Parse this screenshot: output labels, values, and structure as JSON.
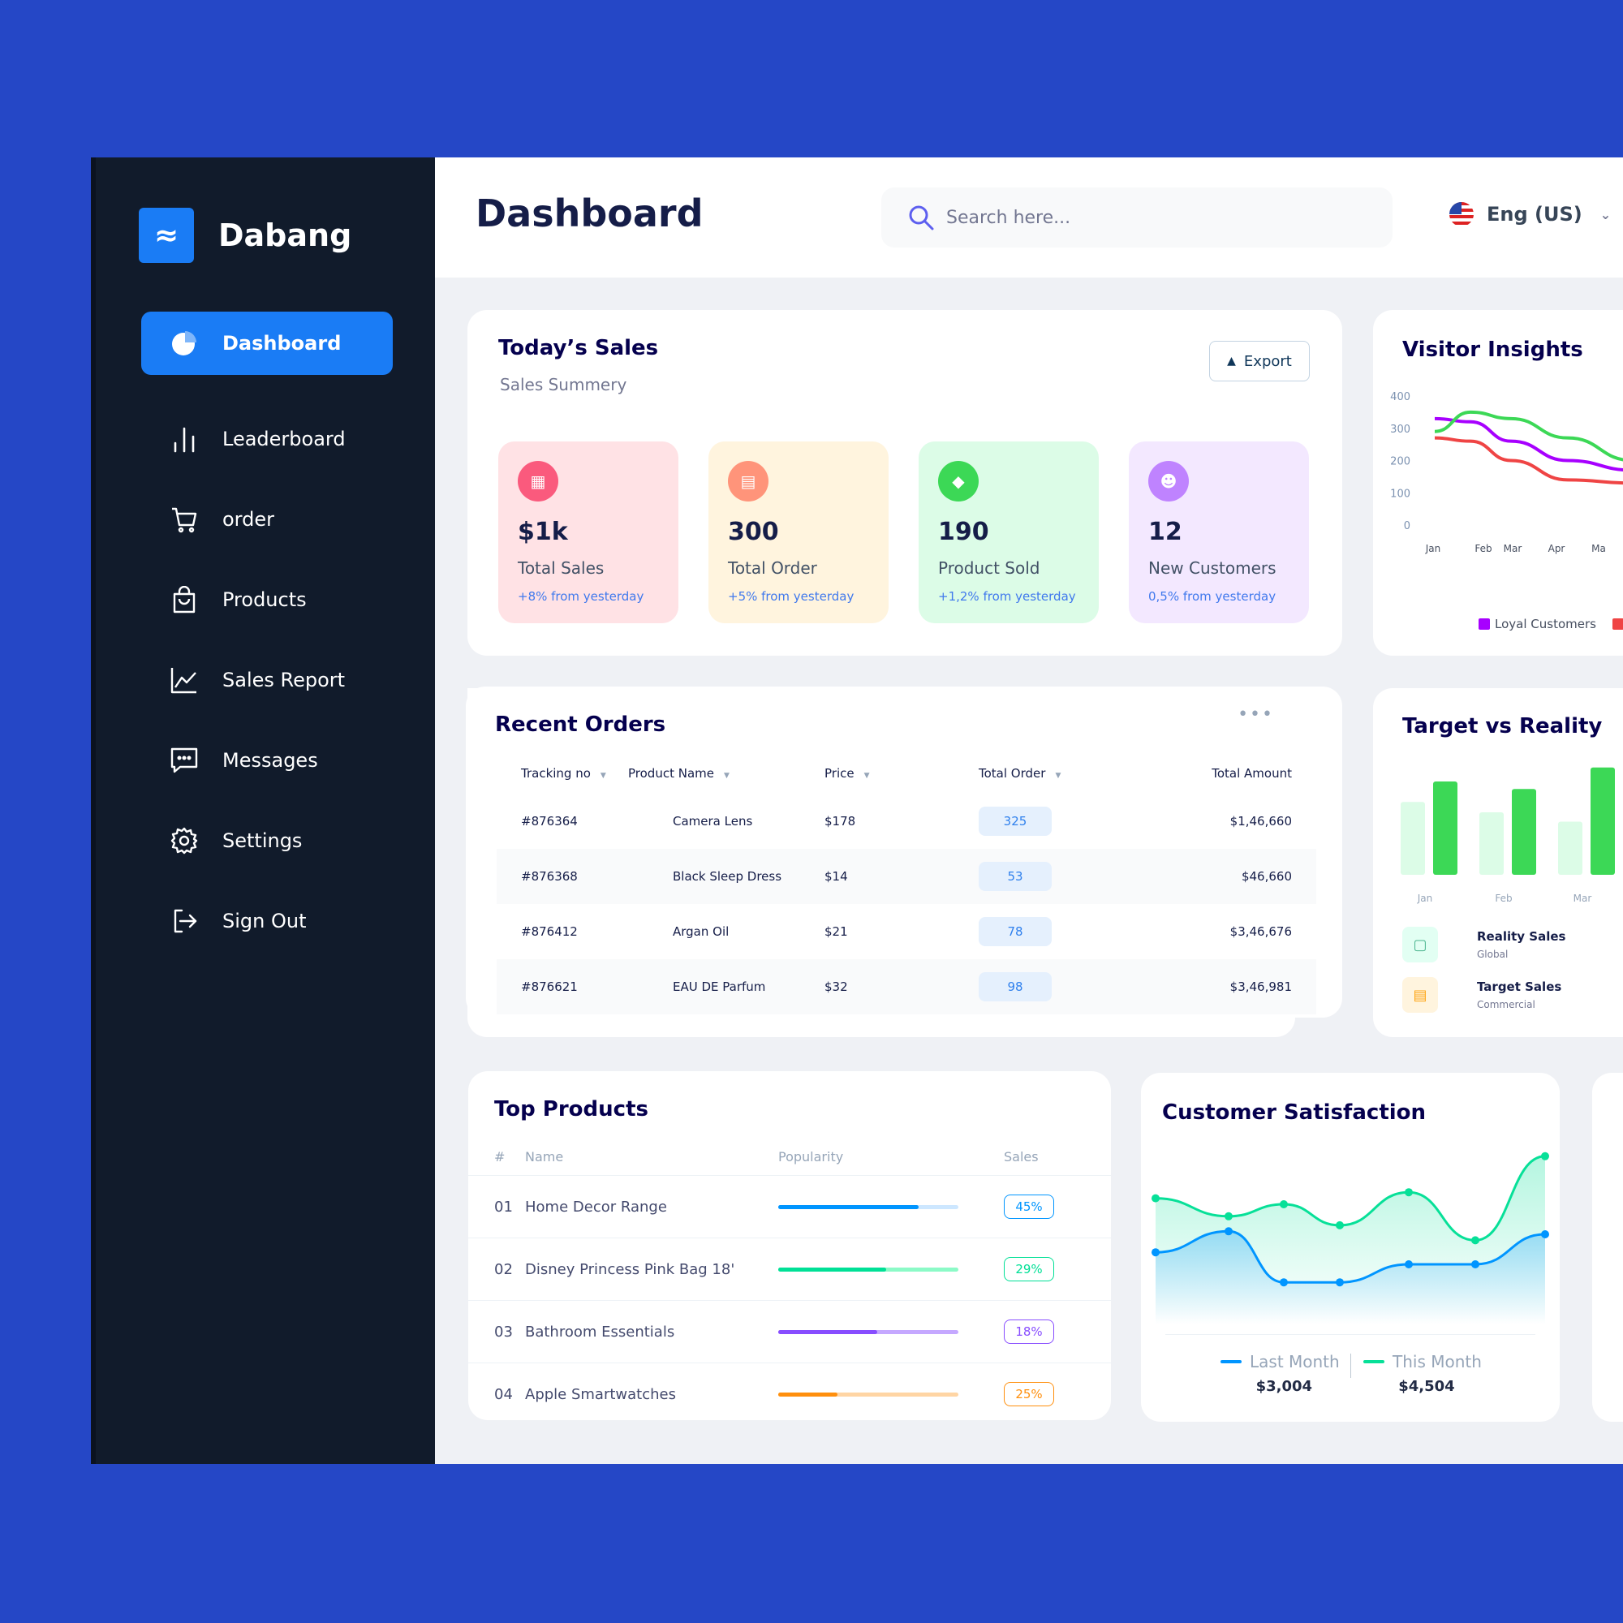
{
  "brand": {
    "logo_glyph": "≈",
    "name": "Dabang"
  },
  "nav": {
    "items": [
      {
        "label": "Dashboard",
        "icon": "pie-chart-icon",
        "active": true
      },
      {
        "label": "Leaderboard",
        "icon": "bar-chart-icon"
      },
      {
        "label": "order",
        "icon": "cart-icon"
      },
      {
        "label": "Products",
        "icon": "shopping-bag-icon"
      },
      {
        "label": "Sales Report",
        "icon": "line-chart-icon"
      },
      {
        "label": "Messages",
        "icon": "message-icon"
      },
      {
        "label": "Settings",
        "icon": "gear-icon"
      },
      {
        "label": "Sign Out",
        "icon": "sign-out-icon"
      }
    ]
  },
  "header": {
    "title": "Dashboard",
    "search_placeholder": "Search here...",
    "language": "Eng (US)"
  },
  "todays_sales": {
    "title": "Today’s Sales",
    "subtitle": "Sales Summery",
    "export_label": "Export",
    "cards": [
      {
        "value": "$1k",
        "label": "Total Sales",
        "change": "+8% from yesterday",
        "bg": "#ffe2e5",
        "icon_bg": "#fa5a7d",
        "icon": "chart-icon"
      },
      {
        "value": "300",
        "label": "Total Order",
        "change": "+5% from yesterday",
        "bg": "#fff4de",
        "icon_bg": "#ff947a",
        "icon": "document-icon"
      },
      {
        "value": "190",
        "label": "Product Sold",
        "change": "+1,2% from yesterday",
        "bg": "#dcfce7",
        "icon_bg": "#3cd856",
        "icon": "tag-icon"
      },
      {
        "value": "12",
        "label": "New Customers",
        "change": "0,5% from yesterday",
        "bg": "#f3e8ff",
        "icon_bg": "#bf83ff",
        "icon": "user-add-icon"
      }
    ]
  },
  "visitor_insights": {
    "title": "Visitor Insights",
    "legend": [
      "Loyal Customers"
    ]
  },
  "recent_orders": {
    "title": "Recent Orders",
    "columns": [
      "Tracking no",
      "Product Name",
      "Price",
      "Total Order",
      "Total Amount"
    ],
    "rows": [
      {
        "tracking": "#876364",
        "product": "Camera Lens",
        "price": "$178",
        "total_order": "325",
        "amount": "$1,46,660"
      },
      {
        "tracking": "#876368",
        "product": "Black Sleep Dress",
        "price": "$14",
        "total_order": "53",
        "amount": "$46,660"
      },
      {
        "tracking": "#876412",
        "product": "Argan Oil",
        "price": "$21",
        "total_order": "78",
        "amount": "$3,46,676"
      },
      {
        "tracking": "#876621",
        "product": "EAU DE Parfum",
        "price": "$32",
        "total_order": "98",
        "amount": "$3,46,981"
      }
    ]
  },
  "target_vs_reality": {
    "title": "Target vs Reality",
    "legend": [
      {
        "label": "Reality Sales",
        "sub": "Global",
        "icon": "bag-icon"
      },
      {
        "label": "Target Sales",
        "sub": "Commercial",
        "icon": "ticket-icon"
      }
    ]
  },
  "top_products": {
    "title": "Top Products",
    "columns": [
      "#",
      "Name",
      "Popularity",
      "Sales"
    ],
    "rows": [
      {
        "rank": "01",
        "name": "Home Decor Range",
        "popularity": 0.78,
        "sales": "45%",
        "color": "#0095ff",
        "track": "#cde7ff"
      },
      {
        "rank": "02",
        "name": "Disney Princess Pink Bag 18'",
        "popularity": 0.6,
        "sales": "29%",
        "color": "#00e096",
        "track": "#8cfac7"
      },
      {
        "rank": "03",
        "name": "Bathroom Essentials",
        "popularity": 0.55,
        "sales": "18%",
        "color": "#884dff",
        "track": "#c5a8ff"
      },
      {
        "rank": "04",
        "name": "Apple Smartwatches",
        "popularity": 0.33,
        "sales": "25%",
        "color": "#ff8f0d",
        "track": "#ffd5a4"
      }
    ]
  },
  "customer_satisfaction": {
    "title": "Customer Satisfaction",
    "last_month_label": "Last Month",
    "last_month_value": "$3,004",
    "this_month_label": "This Month",
    "this_month_value": "$4,504"
  },
  "chart_data": [
    {
      "type": "line",
      "title": "Visitor Insights",
      "x": [
        "Jan",
        "Feb",
        "Mar",
        "Apr",
        "Ma"
      ],
      "ylim": [
        0,
        400
      ],
      "yticks": [
        0,
        100,
        200,
        300,
        400
      ],
      "grid": false,
      "legend_position": "bottom",
      "series": [
        {
          "name": "Loyal Customers",
          "color": "#a700ff",
          "values": [
            330,
            320,
            260,
            200,
            170
          ]
        },
        {
          "color": "#ef4444",
          "values": [
            270,
            260,
            200,
            140,
            130
          ]
        },
        {
          "color": "#3cd856",
          "values": [
            290,
            350,
            330,
            270,
            200
          ]
        }
      ]
    },
    {
      "type": "bar",
      "title": "Target vs Reality",
      "categories": [
        "Jan",
        "Feb",
        "Mar"
      ],
      "series": [
        {
          "name": "Reality Sales",
          "color": "#4ab58e",
          "values": [
            7.8,
            6.7,
            5.7
          ]
        },
        {
          "name": "Target Sales",
          "color": "#ffcf00",
          "values": [
            10,
            9.2,
            11.5
          ]
        }
      ]
    },
    {
      "type": "area",
      "title": "Customer Satisfaction",
      "x": [
        1,
        2,
        3,
        4,
        5,
        6,
        7
      ],
      "series": [
        {
          "name": "Last Month",
          "color": "#0095ff",
          "values": [
            2.4,
            3.1,
            1.4,
            1.4,
            2.0,
            2.0,
            3.0
          ]
        },
        {
          "name": "This Month",
          "color": "#07e098",
          "values": [
            4.2,
            3.6,
            4.0,
            3.3,
            4.4,
            2.8,
            5.6
          ]
        }
      ]
    }
  ]
}
